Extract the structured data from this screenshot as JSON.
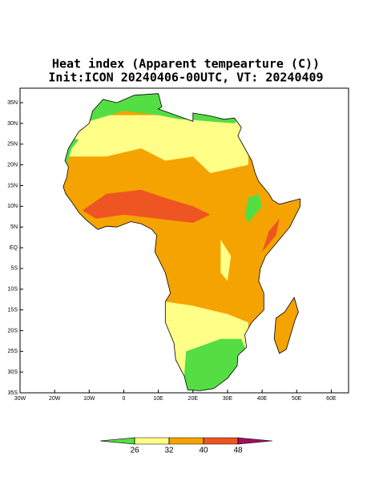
{
  "title": "Heat index (Apparent tempearture (C))",
  "subtitle": "Init:ICON 20240406-00UTC, VT: 20240409",
  "map": {
    "xlim": [
      -30,
      65
    ],
    "ylim": [
      -35,
      38.5
    ],
    "xticks": [
      {
        "value": -30,
        "label": "30W"
      },
      {
        "value": -20,
        "label": "20W"
      },
      {
        "value": -10,
        "label": "10W"
      },
      0,
      {
        "value": 10,
        "label": "10E"
      },
      {
        "value": 20,
        "label": "20E"
      },
      {
        "value": 30,
        "label": "30E"
      },
      {
        "value": 40,
        "label": "40E"
      },
      {
        "value": 50,
        "label": "50E"
      },
      {
        "value": 60,
        "label": "60E"
      }
    ],
    "yticks": [
      {
        "value": 35,
        "label": "35N"
      },
      {
        "value": 30,
        "label": "30N"
      },
      {
        "value": 25,
        "label": "25N"
      },
      {
        "value": 20,
        "label": "20N"
      },
      {
        "value": 15,
        "label": "15N"
      },
      {
        "value": 10,
        "label": "10N"
      },
      {
        "value": 5,
        "label": "5N"
      },
      {
        "value": 0,
        "label": "EQ"
      },
      {
        "value": -5,
        "label": "5S"
      },
      {
        "value": -10,
        "label": "10S"
      },
      {
        "value": -15,
        "label": "15S"
      },
      {
        "value": -20,
        "label": "20S"
      },
      {
        "value": -25,
        "label": "25S"
      },
      {
        "value": -30,
        "label": "30S"
      },
      {
        "value": -35,
        "label": "35S"
      }
    ]
  },
  "colorbar": {
    "levels": [
      26,
      32,
      40,
      48
    ],
    "colors": [
      "#55dd44",
      "#ffff88",
      "#f5a300",
      "#ee5522",
      "#a0105a"
    ]
  }
}
